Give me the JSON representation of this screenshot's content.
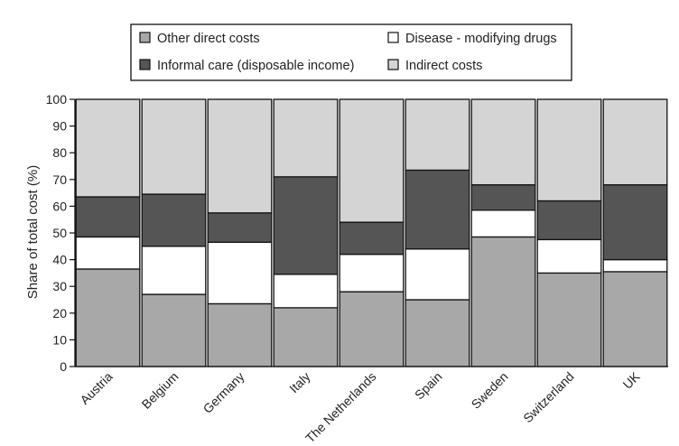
{
  "chart_data": {
    "type": "bar",
    "stacked": true,
    "title": "",
    "xlabel": "",
    "ylabel": "Share of total cost (%)",
    "ylim": [
      0,
      100
    ],
    "yticks": [
      0,
      10,
      20,
      30,
      40,
      50,
      60,
      70,
      80,
      90,
      100
    ],
    "legend_position": "top",
    "categories": [
      "Austria",
      "Belgium",
      "Germany",
      "Italy",
      "The Netherlands",
      "Spain",
      "Sweden",
      "Switzerland",
      "UK"
    ],
    "series": [
      {
        "name": "Other direct costs",
        "color": "#a8a8a8",
        "values": [
          36.5,
          27,
          23.5,
          22,
          28,
          25,
          48.5,
          35,
          35.5
        ]
      },
      {
        "name": "Disease - modifying drugs",
        "color": "#ffffff",
        "values": [
          12,
          18,
          23,
          12.5,
          14,
          19,
          10,
          12.5,
          4.5
        ]
      },
      {
        "name": "Informal care (disposable income)",
        "color": "#555555",
        "values": [
          15,
          19.5,
          11,
          36.5,
          12,
          29.5,
          9.5,
          14.5,
          28
        ]
      },
      {
        "name": "Indirect costs",
        "color": "#d4d4d4",
        "values": [
          36.5,
          35.5,
          42.5,
          29,
          46,
          26.5,
          32,
          38,
          32
        ]
      }
    ]
  }
}
